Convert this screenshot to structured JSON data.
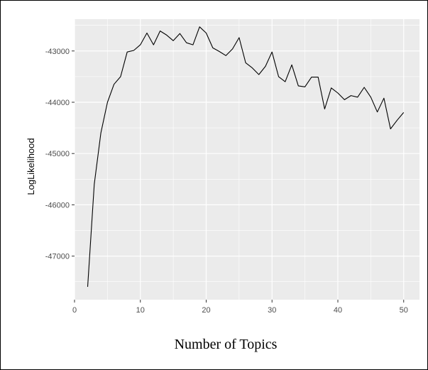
{
  "chart_data": {
    "type": "line",
    "xlabel": "Number of Topics",
    "ylabel": "LogLikelihood",
    "xlim": [
      0,
      52.4
    ],
    "ylim": [
      -47850,
      -42380
    ],
    "xticks": [
      0,
      10,
      20,
      30,
      40,
      50
    ],
    "yticks": [
      -43000,
      -44000,
      -45000,
      -46000,
      -47000
    ],
    "grid": true,
    "panel_color": "#ebebeb",
    "grid_color": "#ffffff",
    "line_color": "#000000",
    "series": [
      {
        "x": [
          2,
          3,
          4,
          5,
          6,
          7,
          8,
          9,
          10,
          11,
          12,
          13,
          14,
          15,
          16,
          17,
          18,
          19,
          20,
          21,
          22,
          23,
          24,
          25,
          26,
          27,
          28,
          29,
          30,
          31,
          32,
          33,
          34,
          35,
          36,
          37,
          38,
          39,
          40,
          41,
          42,
          43,
          44,
          45,
          46,
          47,
          48,
          49,
          50
        ],
        "y": [
          -47600,
          -45600,
          -44600,
          -44000,
          -43650,
          -43500,
          -43020,
          -42990,
          -42880,
          -42650,
          -42880,
          -42610,
          -42690,
          -42800,
          -42660,
          -42840,
          -42880,
          -42530,
          -42650,
          -42940,
          -43010,
          -43090,
          -42960,
          -42740,
          -43230,
          -43330,
          -43460,
          -43300,
          -43020,
          -43500,
          -43600,
          -43270,
          -43680,
          -43700,
          -43510,
          -43510,
          -44130,
          -43720,
          -43820,
          -43950,
          -43870,
          -43900,
          -43710,
          -43900,
          -44190,
          -43920,
          -44520,
          -44350,
          -44200
        ]
      }
    ]
  }
}
